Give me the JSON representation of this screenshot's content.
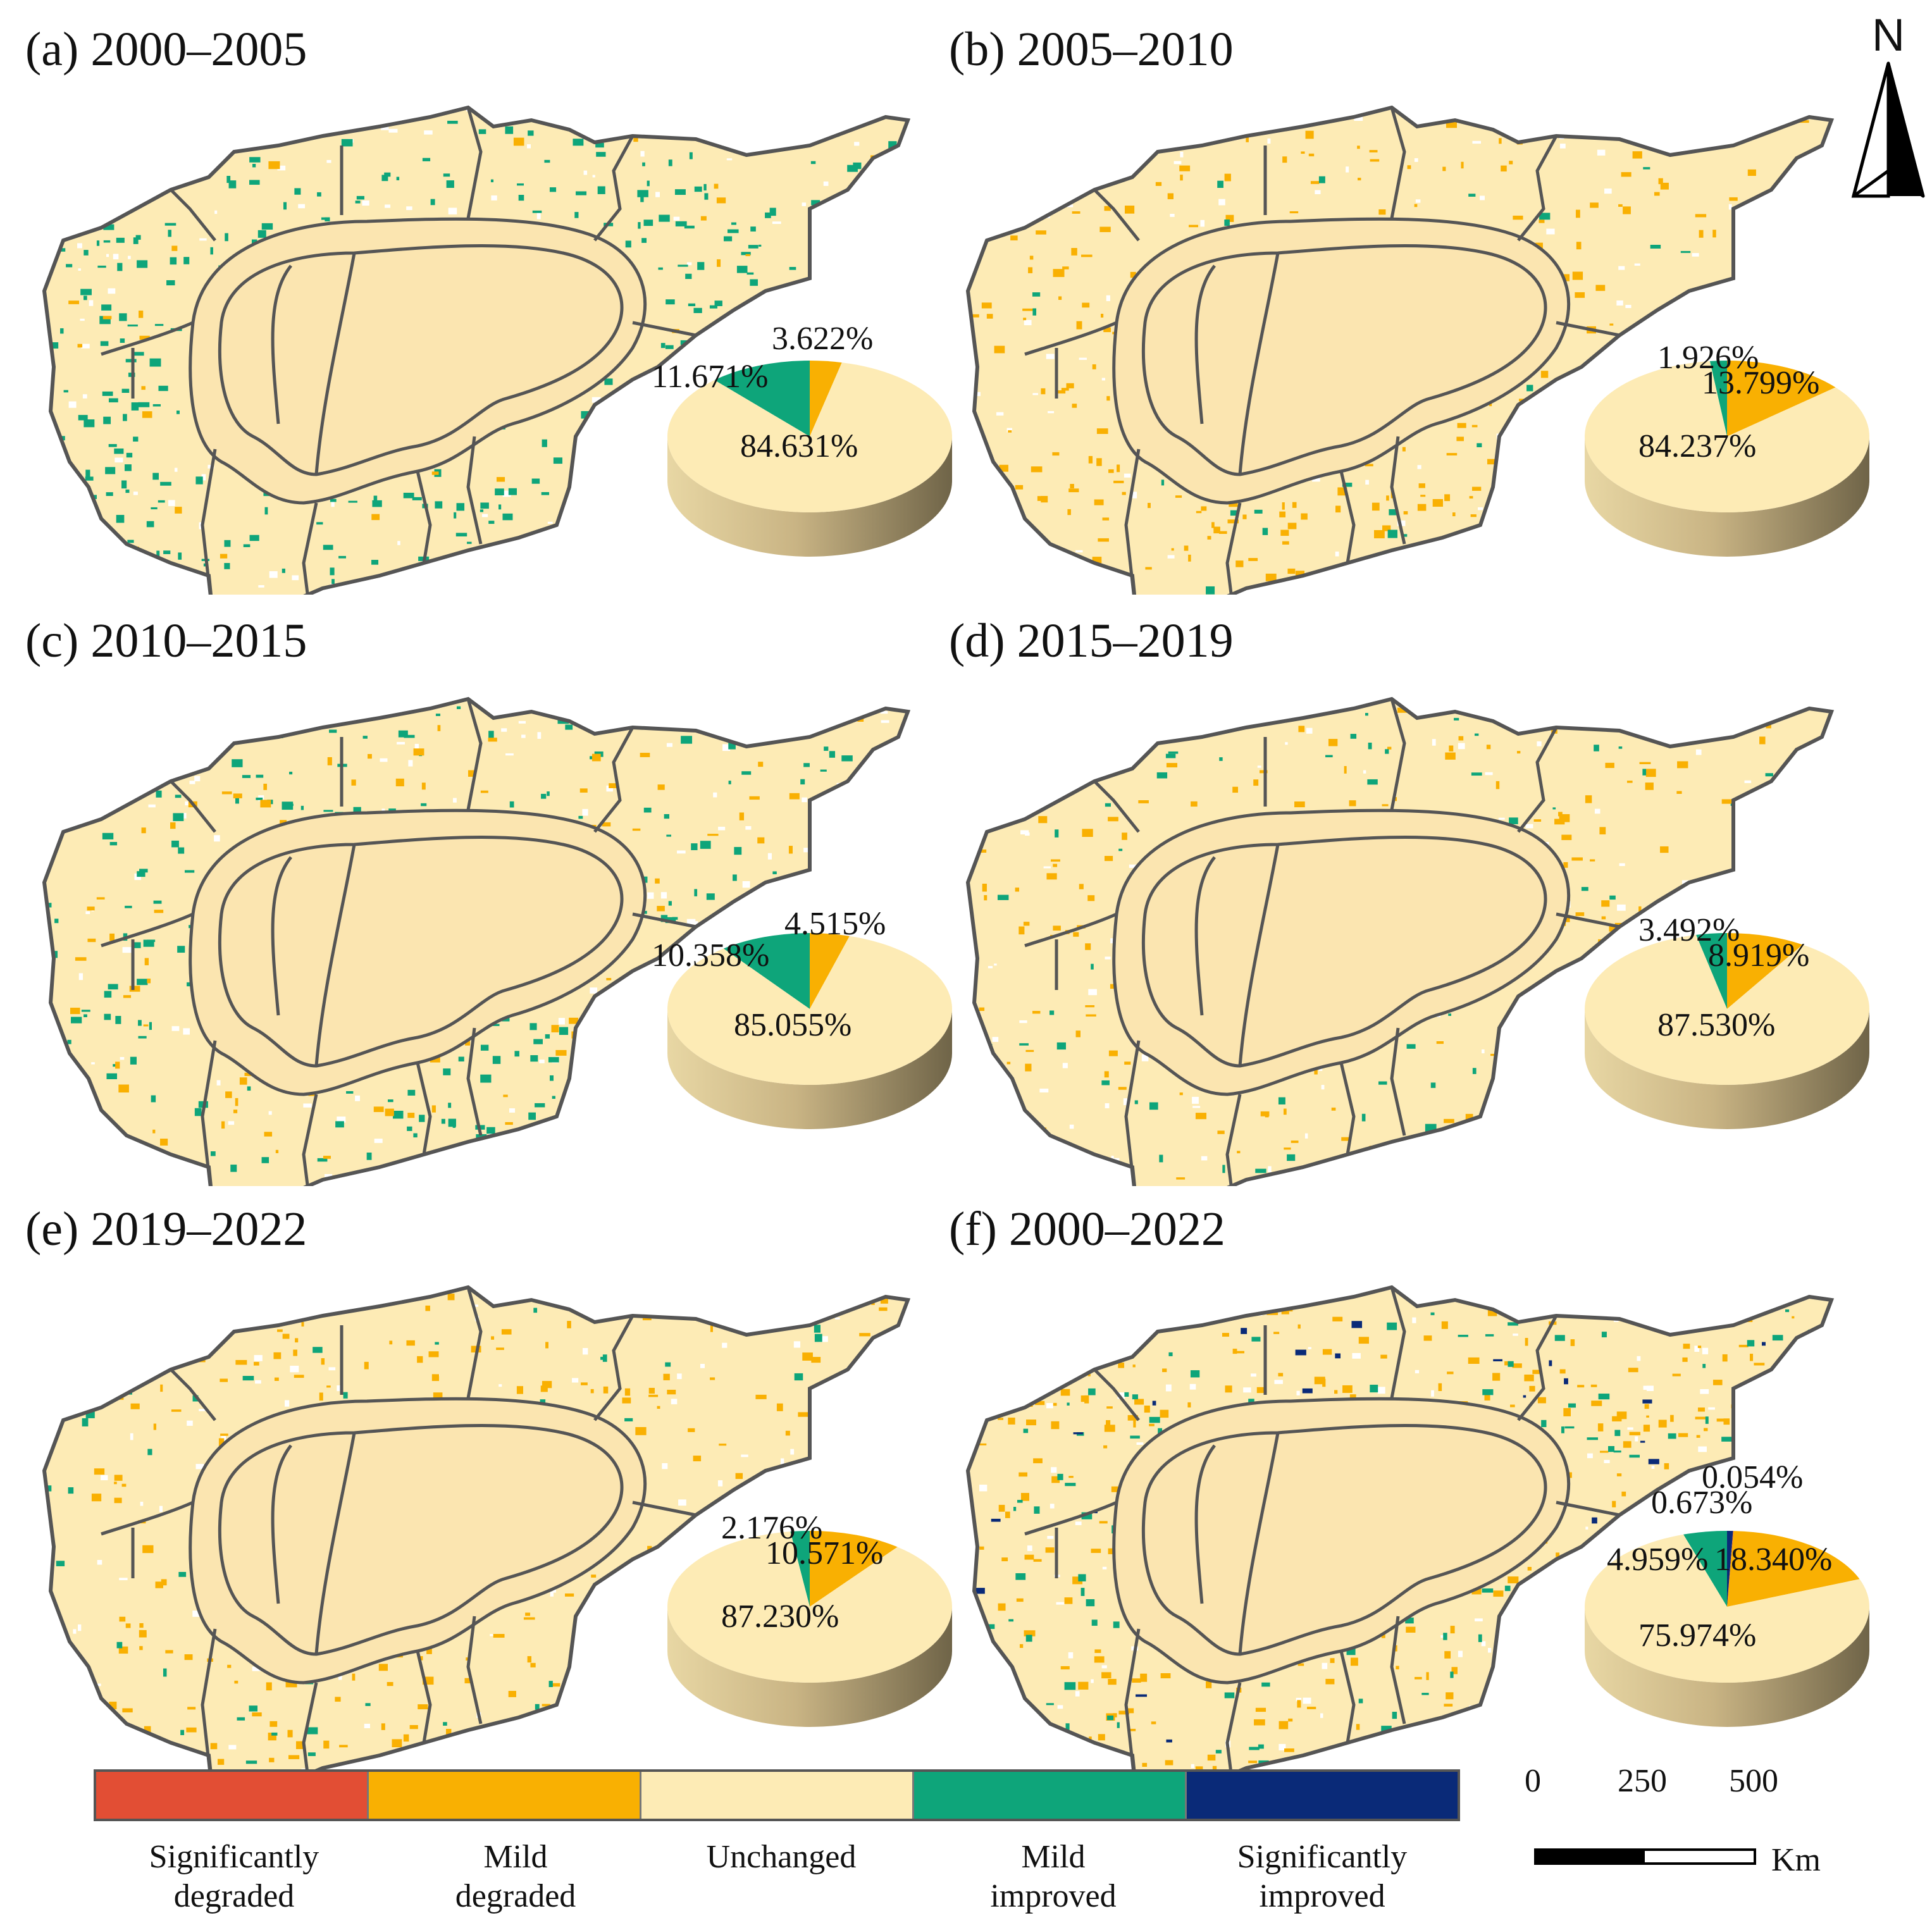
{
  "colors": {
    "significantly_degraded": "#e24e34",
    "mild_degraded": "#f9b002",
    "unchanged": "#fdebb5",
    "mild_improved": "#0ea57a",
    "significantly_improved": "#0a2a78",
    "basin": "#fbe5b0",
    "boundary": "#555555"
  },
  "panels": [
    {
      "id": "a",
      "title": "(a) 2000–2005",
      "pie": [
        {
          "class": "mild_improved",
          "value": 11.671,
          "label": "11.671%"
        },
        {
          "class": "mild_degraded",
          "value": 3.622,
          "label": "3.622%"
        },
        {
          "class": "unchanged",
          "value": 84.631,
          "label": "84.631%"
        }
      ]
    },
    {
      "id": "b",
      "title": "(b) 2005–2010",
      "pie": [
        {
          "class": "mild_improved",
          "value": 1.926,
          "label": "1.926%"
        },
        {
          "class": "mild_degraded",
          "value": 13.799,
          "label": "13.799%"
        },
        {
          "class": "unchanged",
          "value": 84.237,
          "label": "84.237%"
        }
      ]
    },
    {
      "id": "c",
      "title": "(c) 2010–2015",
      "pie": [
        {
          "class": "mild_improved",
          "value": 10.358,
          "label": "10.358%"
        },
        {
          "class": "mild_degraded",
          "value": 4.515,
          "label": "4.515%"
        },
        {
          "class": "unchanged",
          "value": 85.055,
          "label": "85.055%"
        }
      ]
    },
    {
      "id": "d",
      "title": "(d) 2015–2019",
      "pie": [
        {
          "class": "mild_improved",
          "value": 3.492,
          "label": "3.492%"
        },
        {
          "class": "mild_degraded",
          "value": 8.919,
          "label": "8.919%"
        },
        {
          "class": "unchanged",
          "value": 87.53,
          "label": "87.530%"
        }
      ]
    },
    {
      "id": "e",
      "title": "(e) 2019–2022",
      "pie": [
        {
          "class": "mild_improved",
          "value": 2.176,
          "label": "2.176%"
        },
        {
          "class": "mild_degraded",
          "value": 10.571,
          "label": "10.571%"
        },
        {
          "class": "unchanged",
          "value": 87.23,
          "label": "87.230%"
        }
      ]
    },
    {
      "id": "f",
      "title": "(f) 2000–2022",
      "pie": [
        {
          "class": "mild_improved",
          "value": 4.959,
          "label": "4.959%"
        },
        {
          "class": "significantly_improved",
          "value": 0.673,
          "label": "0.673%"
        },
        {
          "class": "significantly_degraded",
          "value": 0.054,
          "label": "0.054%"
        },
        {
          "class": "mild_degraded",
          "value": 18.34,
          "label": "18.340%"
        },
        {
          "class": "unchanged",
          "value": 75.974,
          "label": "75.974%"
        }
      ]
    }
  ],
  "north_arrow": {
    "label": "N"
  },
  "legend": {
    "items": [
      {
        "class": "significantly_degraded",
        "label_line1": "Significantly",
        "label_line2": "degraded"
      },
      {
        "class": "mild_degraded",
        "label_line1": "Mild",
        "label_line2": "degraded"
      },
      {
        "class": "unchanged",
        "label_line1": "Unchanged",
        "label_line2": ""
      },
      {
        "class": "mild_improved",
        "label_line1": "Mild",
        "label_line2": "improved"
      },
      {
        "class": "significantly_improved",
        "label_line1": "Significantly",
        "label_line2": "improved"
      }
    ]
  },
  "scale_bar": {
    "ticks": [
      "0",
      "250",
      "500"
    ],
    "unit": "Km"
  }
}
